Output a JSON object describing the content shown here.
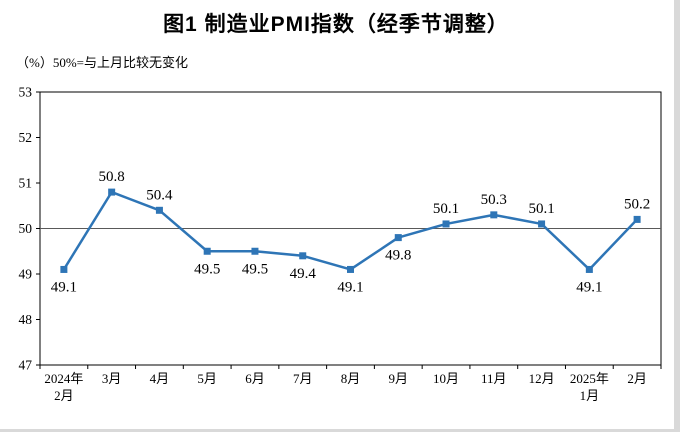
{
  "page": {
    "title": "图1  制造业PMI指数（经季节调整）",
    "note": "（%）50%=与上月比较无变化"
  },
  "chart_data": {
    "type": "line",
    "title": "图1  制造业PMI指数（经季节调整）",
    "subtitle": "（%）50%=与上月比较无变化",
    "categories": [
      "2024年2月",
      "3月",
      "4月",
      "5月",
      "6月",
      "7月",
      "8月",
      "9月",
      "10月",
      "11月",
      "12月",
      "2025年1月",
      "2月"
    ],
    "x_tick_lines": [
      [
        "2024年",
        "2月"
      ],
      [
        "3月"
      ],
      [
        "4月"
      ],
      [
        "5月"
      ],
      [
        "6月"
      ],
      [
        "7月"
      ],
      [
        "8月"
      ],
      [
        "9月"
      ],
      [
        "10月"
      ],
      [
        "11月"
      ],
      [
        "12月"
      ],
      [
        "2025年",
        "1月"
      ],
      [
        "2月"
      ]
    ],
    "series": [
      {
        "name": "制造业PMI指数",
        "values": [
          49.1,
          50.8,
          50.4,
          49.5,
          49.5,
          49.4,
          49.1,
          49.8,
          50.1,
          50.3,
          50.1,
          49.1,
          50.2
        ]
      }
    ],
    "xlabel": "",
    "ylabel": "%",
    "ylim": [
      47,
      53
    ],
    "ytick_step": 1,
    "yticks": [
      47,
      48,
      49,
      50,
      51,
      52,
      53
    ],
    "reference_line": 50,
    "grid": false,
    "legend_position": "none",
    "colors": {
      "line": "#2E75B6",
      "marker": "#2E75B6",
      "axis": "#000000",
      "reference": "#595959",
      "label": "#000000"
    }
  }
}
